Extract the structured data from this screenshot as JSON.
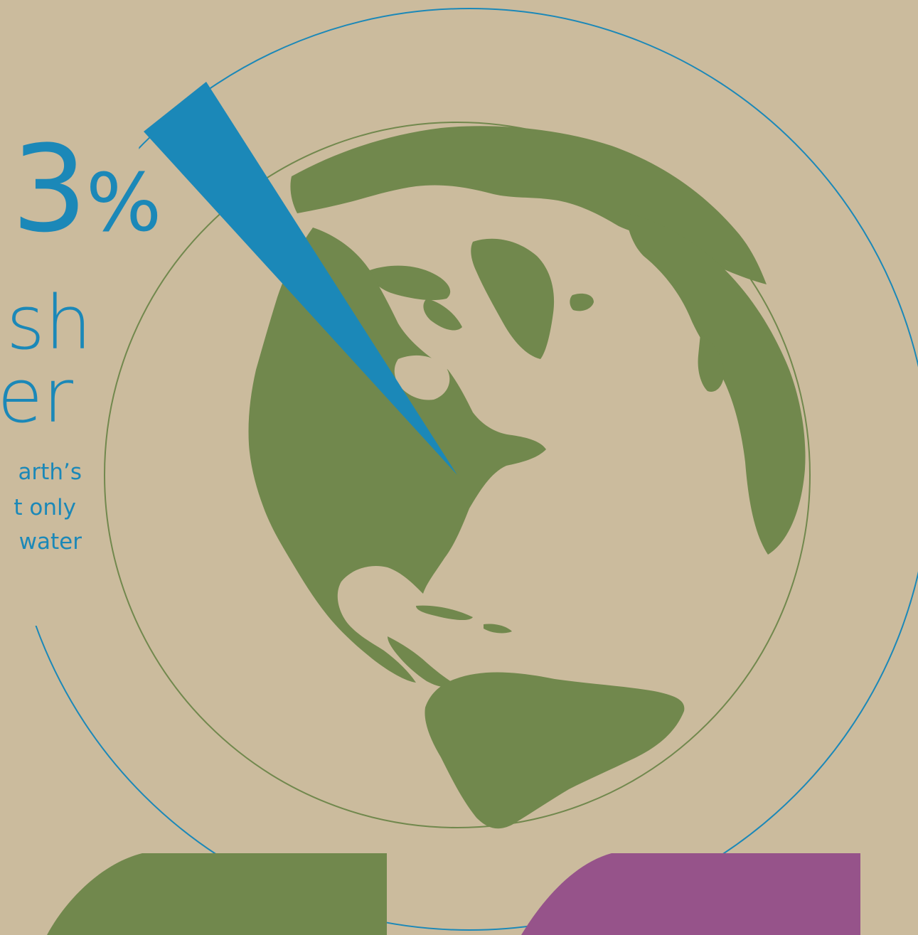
{
  "infographic": {
    "percent_number": "3",
    "percent_symbol": "%",
    "headline_line_1": "sh",
    "headline_line_2": "er",
    "body_line_1": "arth’s",
    "body_line_2": "t only",
    "body_line_3": "water"
  },
  "colors": {
    "background": "#cbbb9d",
    "accent_blue": "#1b88b8",
    "land_green": "#71884d",
    "card_purple": "#96538a"
  },
  "icons": {
    "globe": "globe-north-america-icon",
    "wedge": "freshwater-wedge-icon"
  }
}
